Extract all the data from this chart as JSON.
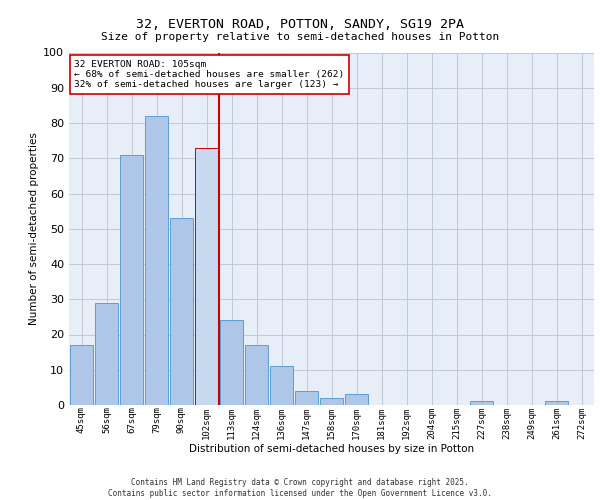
{
  "title1": "32, EVERTON ROAD, POTTON, SANDY, SG19 2PA",
  "title2": "Size of property relative to semi-detached houses in Potton",
  "xlabel": "Distribution of semi-detached houses by size in Potton",
  "ylabel": "Number of semi-detached properties",
  "categories": [
    "45sqm",
    "56sqm",
    "67sqm",
    "79sqm",
    "90sqm",
    "102sqm",
    "113sqm",
    "124sqm",
    "136sqm",
    "147sqm",
    "158sqm",
    "170sqm",
    "181sqm",
    "192sqm",
    "204sqm",
    "215sqm",
    "227sqm",
    "238sqm",
    "249sqm",
    "261sqm",
    "272sqm"
  ],
  "values": [
    17,
    29,
    71,
    82,
    53,
    73,
    24,
    17,
    11,
    4,
    2,
    3,
    0,
    0,
    0,
    0,
    1,
    0,
    0,
    1,
    0
  ],
  "bar_color": "#aec6e8",
  "bar_edge_color": "#5a9fd4",
  "highlight_index": 5,
  "highlight_bar_color": "#c8d8ee",
  "highlight_bar_edge_color": "#cc0000",
  "vline_color": "#cc0000",
  "annotation_text": "32 EVERTON ROAD: 105sqm\n← 68% of semi-detached houses are smaller (262)\n32% of semi-detached houses are larger (123) →",
  "annotation_box_color": "#ffffff",
  "annotation_box_edge_color": "#cc0000",
  "ylim": [
    0,
    100
  ],
  "yticks": [
    0,
    10,
    20,
    30,
    40,
    50,
    60,
    70,
    80,
    90,
    100
  ],
  "grid_color": "#c0c8d8",
  "bg_color": "#e8eef8",
  "footer1": "Contains HM Land Registry data © Crown copyright and database right 2025.",
  "footer2": "Contains public sector information licensed under the Open Government Licence v3.0."
}
